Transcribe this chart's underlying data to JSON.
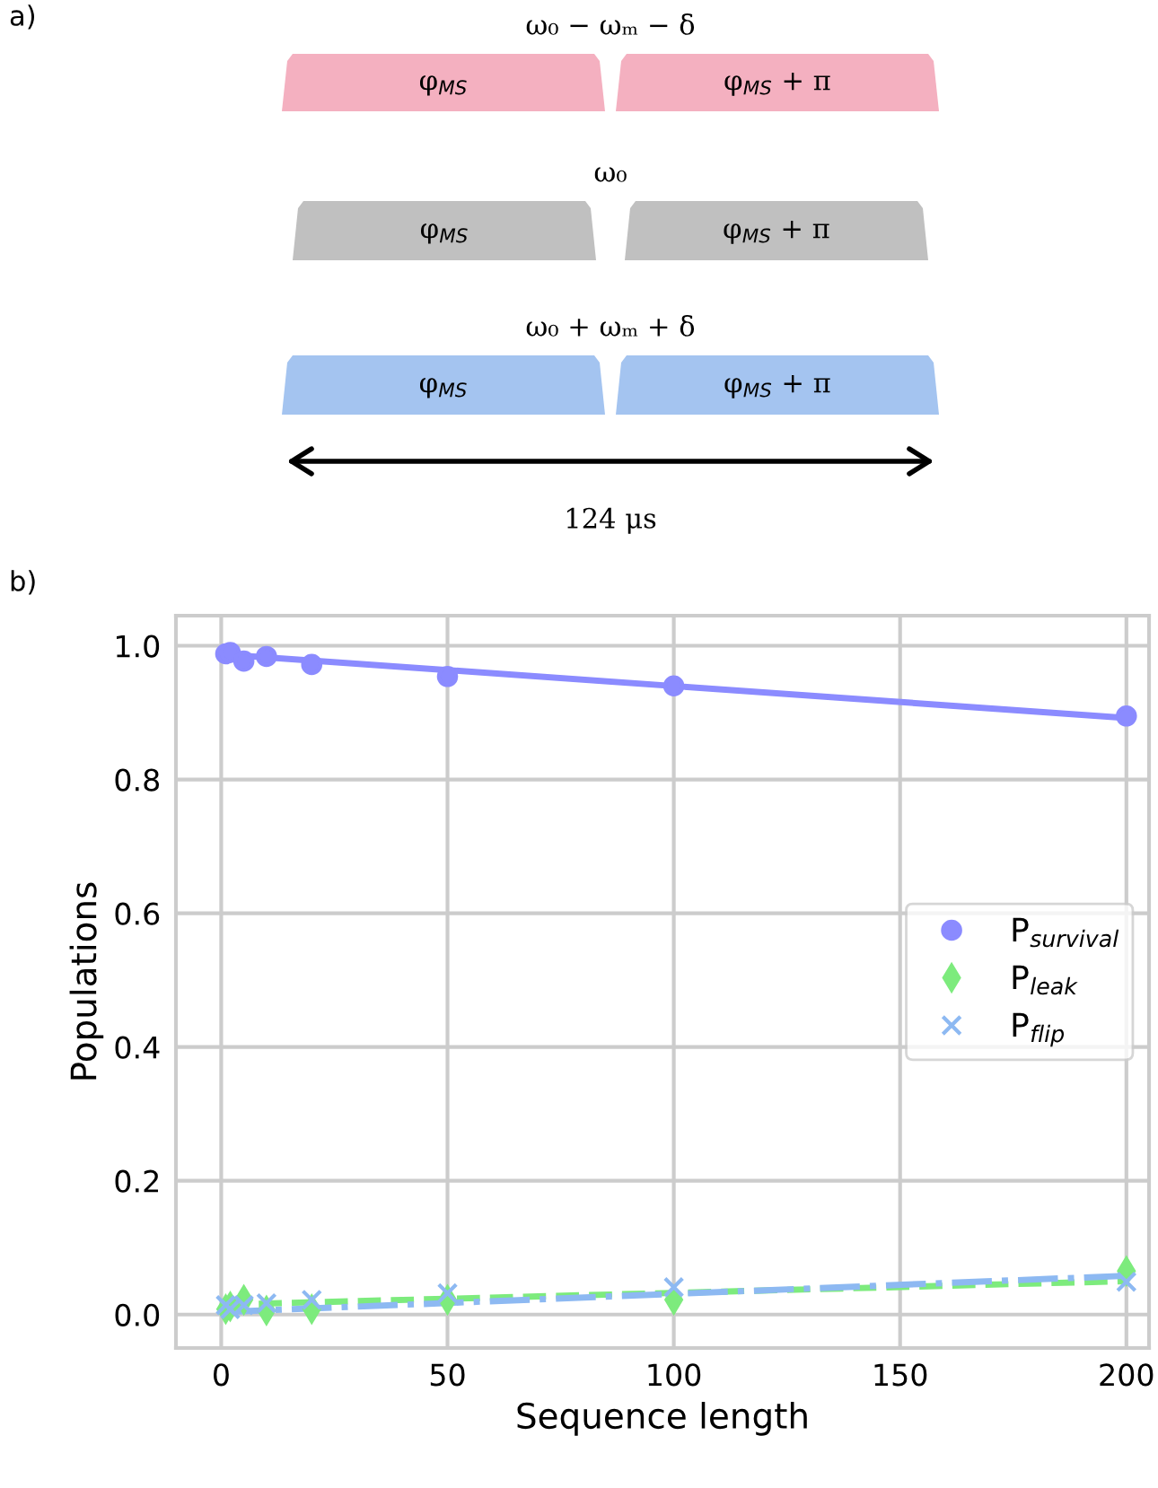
{
  "chart_data": [
    {
      "type": "other",
      "annotations": [
        "a)",
        "ω₀ − ωₘ − δ",
        "φ$_{MS}$",
        "φ$_{MS}$ + π",
        "ω₀",
        "φ$_{MS}$",
        "φ$_{MS}$ + π",
        "ω₀ + ωₘ + δ",
        "φ$_{MS}$",
        "φ$_{MS}$ + π",
        "124 μs"
      ]
    },
    {
      "type": "scatter",
      "annotations": [
        "b)"
      ],
      "xlabel": "Sequence length",
      "ylabel": "Populations",
      "xlim": [
        -10,
        205
      ],
      "ylim": [
        -0.05,
        1.045
      ],
      "xticks": [
        0,
        50,
        100,
        150,
        200
      ],
      "yticks": [
        {
          "value": 0,
          "label": "0.0"
        },
        0.2,
        0.4,
        0.6,
        0.8,
        {
          "value": 1,
          "label": "1.0"
        }
      ],
      "grid": true,
      "legend": "right",
      "series": [
        {
          "name": "P$_{survival}$",
          "color": "#8b8bff",
          "marker": "circle",
          "x": [
            1,
            2,
            5,
            10,
            20,
            50,
            100,
            200
          ],
          "values": [
            0.988,
            0.99,
            0.977,
            0.984,
            0.972,
            0.954,
            0.94,
            0.895
          ]
        },
        {
          "name": "P$_{leak}$",
          "color": "#7deb7d",
          "marker": "diamond",
          "x": [
            1,
            2,
            5,
            10,
            20,
            50,
            100,
            200
          ],
          "values": [
            0.008,
            0.012,
            0.022,
            0.006,
            0.008,
            0.022,
            0.022,
            0.065
          ]
        },
        {
          "name": "P$_{flip}$",
          "color": "#8db9f2",
          "marker": "cross",
          "x": [
            1,
            2,
            5,
            10,
            20,
            50,
            100,
            200
          ],
          "values": [
            0.014,
            0.008,
            0.014,
            0.017,
            0.022,
            0.032,
            0.041,
            0.049
          ]
        },
        {
          "type": "line",
          "color": "#8b8bff",
          "line_style": "solid",
          "x": [
            1,
            200
          ],
          "values": [
            0.987,
            0.892
          ]
        },
        {
          "type": "line",
          "color": "#7deb7d",
          "line_style": "dashed",
          "x": [
            1,
            200
          ],
          "values": [
            0.015,
            0.05
          ]
        },
        {
          "type": "line",
          "color": "#8db9f2",
          "line_style": "dashdot",
          "x": [
            1,
            200
          ],
          "values": [
            0.004,
            0.058
          ]
        }
      ]
    }
  ]
}
